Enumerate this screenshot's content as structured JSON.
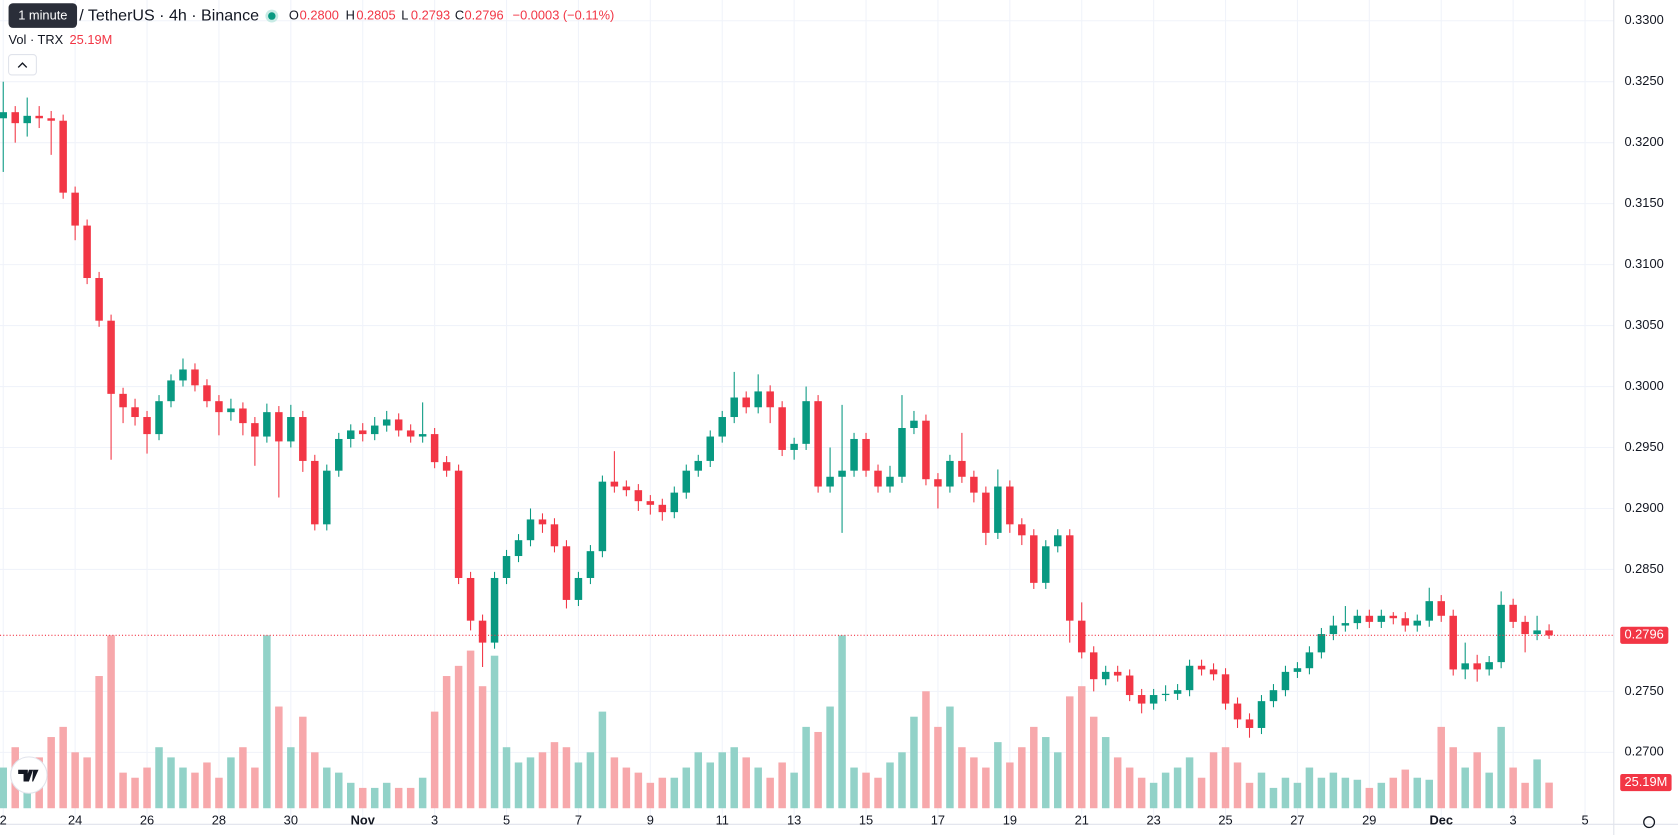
{
  "chart_data": {
    "type": "candlestick",
    "tooltip": "1 minute",
    "title": "/ TetherUS · 4h · Binance",
    "legend": {
      "o_label": "O",
      "o": "0.2800",
      "h_label": "H",
      "h": "0.2805",
      "l_label": "L",
      "l": "0.2793",
      "c_label": "C",
      "c": "0.2796",
      "change": "−0.0003 (−0.11%)"
    },
    "volume_label": "Vol · TRX",
    "volume_value": "25.19M",
    "up_color": "#089981",
    "down_color": "#f23645",
    "up_volume_color": "#92d2c8",
    "down_volume_color": "#f7a8ab",
    "grid": true,
    "ylim": [
      0.2641,
      0.3317
    ],
    "yticks": [
      {
        "value": 0.33,
        "label": "0.3300"
      },
      {
        "value": 0.325,
        "label": "0.3250"
      },
      {
        "value": 0.32,
        "label": "0.3200"
      },
      {
        "value": 0.315,
        "label": "0.3150"
      },
      {
        "value": 0.31,
        "label": "0.3100"
      },
      {
        "value": 0.305,
        "label": "0.3050"
      },
      {
        "value": 0.3,
        "label": "0.3000"
      },
      {
        "value": 0.295,
        "label": "0.2950"
      },
      {
        "value": 0.29,
        "label": "0.2900"
      },
      {
        "value": 0.285,
        "label": "0.2850"
      },
      {
        "value": 0.275,
        "label": "0.2750"
      },
      {
        "value": 0.27,
        "label": "0.2700"
      }
    ],
    "xlim": [
      -0.27,
      134.4
    ],
    "xticks": [
      {
        "value": 0,
        "label": "2"
      },
      {
        "value": 6,
        "label": "24"
      },
      {
        "value": 12,
        "label": "26"
      },
      {
        "value": 18,
        "label": "28"
      },
      {
        "value": 24,
        "label": "30"
      },
      {
        "value": 30,
        "label": "Nov"
      },
      {
        "value": 36,
        "label": "3"
      },
      {
        "value": 42,
        "label": "5"
      },
      {
        "value": 48,
        "label": "7"
      },
      {
        "value": 54,
        "label": "9"
      },
      {
        "value": 60,
        "label": "11"
      },
      {
        "value": 66,
        "label": "13"
      },
      {
        "value": 72,
        "label": "15"
      },
      {
        "value": 78,
        "label": "17"
      },
      {
        "value": 84,
        "label": "19"
      },
      {
        "value": 90,
        "label": "21"
      },
      {
        "value": 96,
        "label": "23"
      },
      {
        "value": 102,
        "label": "25"
      },
      {
        "value": 108,
        "label": "27"
      },
      {
        "value": 114,
        "label": "29"
      },
      {
        "value": 120,
        "label": "Dec"
      },
      {
        "value": 126,
        "label": "3"
      },
      {
        "value": 132,
        "label": "5"
      }
    ],
    "volume_ylim": [
      0,
      200
    ],
    "open": [
      0.322,
      0.3225,
      0.3216,
      0.3222,
      0.322,
      0.3218,
      0.3159,
      0.3132,
      0.3089,
      0.3054,
      0.2994,
      0.2983,
      0.2975,
      0.2961,
      0.2988,
      0.3005,
      0.3014,
      0.3001,
      0.2988,
      0.2979,
      0.2982,
      0.297,
      0.2959,
      0.2979,
      0.2955,
      0.2975,
      0.2939,
      0.2887,
      0.2931,
      0.2957,
      0.2964,
      0.2961,
      0.2968,
      0.2973,
      0.2964,
      0.2959,
      0.2961,
      0.2938,
      0.2931,
      0.2843,
      0.2808,
      0.279,
      0.2843,
      0.2861,
      0.2874,
      0.2891,
      0.2887,
      0.2869,
      0.2825,
      0.2843,
      0.2865,
      0.2922,
      0.2918,
      0.2915,
      0.2906,
      0.2903,
      0.2897,
      0.2913,
      0.2931,
      0.2939,
      0.2959,
      0.2975,
      0.2991,
      0.2983,
      0.2996,
      0.2983,
      0.2948,
      0.2953,
      0.2988,
      0.2918,
      0.2926,
      0.2931,
      0.2957,
      0.2931,
      0.2918,
      0.2926,
      0.2966,
      0.2972,
      0.2924,
      0.2918,
      0.2939,
      0.2926,
      0.2913,
      0.288,
      0.2918,
      0.2887,
      0.2878,
      0.2839,
      0.2869,
      0.2878,
      0.2808,
      0.2782,
      0.276,
      0.2766,
      0.2763,
      0.2747,
      0.274,
      0.2747,
      0.2748,
      0.2751,
      0.2771,
      0.2768,
      0.2764,
      0.274,
      0.2727,
      0.272,
      0.2742,
      0.2751,
      0.2766,
      0.2769,
      0.2782,
      0.2797,
      0.2804,
      0.2806,
      0.2812,
      0.2807,
      0.2812,
      0.281,
      0.2804,
      0.2808,
      0.2824,
      0.2812,
      0.2768,
      0.2773,
      0.2768,
      0.2774,
      0.2821,
      0.2807,
      0.2797,
      0.28
    ],
    "high": [
      0.325,
      0.323,
      0.3237,
      0.323,
      0.3226,
      0.3223,
      0.3164,
      0.3137,
      0.3094,
      0.3059,
      0.2999,
      0.299,
      0.298,
      0.2993,
      0.301,
      0.3023,
      0.3019,
      0.3006,
      0.2993,
      0.299,
      0.2987,
      0.2975,
      0.2986,
      0.2984,
      0.2985,
      0.298,
      0.2944,
      0.2936,
      0.2962,
      0.2969,
      0.297,
      0.2975,
      0.298,
      0.2978,
      0.2969,
      0.2987,
      0.2966,
      0.2943,
      0.2936,
      0.2848,
      0.2813,
      0.2848,
      0.2866,
      0.2879,
      0.29,
      0.2896,
      0.2892,
      0.2874,
      0.2848,
      0.287,
      0.2927,
      0.2947,
      0.2923,
      0.292,
      0.2911,
      0.2908,
      0.2918,
      0.2936,
      0.2944,
      0.2964,
      0.298,
      0.3012,
      0.2996,
      0.301,
      0.3001,
      0.2988,
      0.2958,
      0.3,
      0.2993,
      0.295,
      0.2985,
      0.2962,
      0.2962,
      0.2936,
      0.2935,
      0.2993,
      0.298,
      0.2977,
      0.2929,
      0.2944,
      0.2962,
      0.2931,
      0.2918,
      0.2932,
      0.2923,
      0.2892,
      0.2883,
      0.2874,
      0.2883,
      0.2883,
      0.2823,
      0.2787,
      0.2771,
      0.2771,
      0.2768,
      0.2752,
      0.2752,
      0.2755,
      0.2756,
      0.2776,
      0.2776,
      0.2773,
      0.2769,
      0.2745,
      0.2732,
      0.2747,
      0.2756,
      0.2771,
      0.2774,
      0.2787,
      0.2802,
      0.2812,
      0.282,
      0.2817,
      0.2817,
      0.2817,
      0.2815,
      0.2815,
      0.2813,
      0.2835,
      0.2829,
      0.2817,
      0.279,
      0.278,
      0.2779,
      0.2832,
      0.2826,
      0.2812,
      0.2812,
      0.2805
    ],
    "low": [
      0.3176,
      0.32,
      0.3205,
      0.3212,
      0.319,
      0.3154,
      0.312,
      0.3084,
      0.3049,
      0.294,
      0.297,
      0.2968,
      0.2945,
      0.2956,
      0.2983,
      0.3,
      0.2996,
      0.2983,
      0.296,
      0.2972,
      0.296,
      0.2935,
      0.2954,
      0.2909,
      0.295,
      0.293,
      0.2882,
      0.2882,
      0.2926,
      0.295,
      0.2955,
      0.2956,
      0.2963,
      0.2959,
      0.2954,
      0.2954,
      0.2933,
      0.2926,
      0.2838,
      0.28,
      0.277,
      0.2785,
      0.2838,
      0.2856,
      0.2869,
      0.288,
      0.2864,
      0.2818,
      0.282,
      0.2838,
      0.286,
      0.2913,
      0.291,
      0.2898,
      0.2895,
      0.289,
      0.2892,
      0.2908,
      0.2926,
      0.2934,
      0.2954,
      0.297,
      0.2978,
      0.2978,
      0.297,
      0.2943,
      0.294,
      0.2948,
      0.2913,
      0.2913,
      0.288,
      0.2926,
      0.2926,
      0.2913,
      0.2913,
      0.2921,
      0.2961,
      0.2919,
      0.29,
      0.2913,
      0.2921,
      0.2905,
      0.287,
      0.2875,
      0.288,
      0.287,
      0.2834,
      0.2834,
      0.2864,
      0.279,
      0.2777,
      0.275,
      0.2755,
      0.2758,
      0.2742,
      0.2732,
      0.2735,
      0.2742,
      0.2743,
      0.2746,
      0.2763,
      0.2759,
      0.2735,
      0.272,
      0.2712,
      0.2715,
      0.2737,
      0.2746,
      0.2761,
      0.2764,
      0.2777,
      0.2792,
      0.2799,
      0.2801,
      0.2802,
      0.2802,
      0.2805,
      0.2799,
      0.2799,
      0.2803,
      0.2807,
      0.2763,
      0.276,
      0.2758,
      0.2763,
      0.2769,
      0.2802,
      0.2782,
      0.2792,
      0.2793
    ],
    "close": [
      0.3225,
      0.3216,
      0.3222,
      0.322,
      0.3218,
      0.3159,
      0.3132,
      0.3089,
      0.3054,
      0.2994,
      0.2983,
      0.2975,
      0.2961,
      0.2988,
      0.3005,
      0.3014,
      0.3001,
      0.2988,
      0.2979,
      0.2982,
      0.297,
      0.2959,
      0.2979,
      0.2955,
      0.2975,
      0.2939,
      0.2887,
      0.2931,
      0.2957,
      0.2964,
      0.2961,
      0.2968,
      0.2973,
      0.2964,
      0.2959,
      0.2961,
      0.2938,
      0.2931,
      0.2843,
      0.2808,
      0.279,
      0.2843,
      0.2861,
      0.2874,
      0.2891,
      0.2887,
      0.2869,
      0.2825,
      0.2843,
      0.2865,
      0.2922,
      0.2918,
      0.2915,
      0.2906,
      0.2903,
      0.2897,
      0.2913,
      0.2931,
      0.2939,
      0.2959,
      0.2975,
      0.2991,
      0.2983,
      0.2996,
      0.2983,
      0.2948,
      0.2953,
      0.2988,
      0.2918,
      0.2926,
      0.2931,
      0.2957,
      0.2931,
      0.2918,
      0.2926,
      0.2966,
      0.2972,
      0.2924,
      0.2918,
      0.2939,
      0.2926,
      0.2913,
      0.288,
      0.2918,
      0.2887,
      0.2878,
      0.2839,
      0.2869,
      0.2878,
      0.2808,
      0.2782,
      0.276,
      0.2766,
      0.2763,
      0.2747,
      0.274,
      0.2747,
      0.2748,
      0.2751,
      0.2771,
      0.2768,
      0.2764,
      0.274,
      0.2727,
      0.272,
      0.2742,
      0.2751,
      0.2766,
      0.2769,
      0.2782,
      0.2797,
      0.2804,
      0.2806,
      0.2812,
      0.2807,
      0.2812,
      0.281,
      0.2804,
      0.2808,
      0.2824,
      0.2812,
      0.2768,
      0.2773,
      0.2768,
      0.2774,
      0.2821,
      0.2807,
      0.2797,
      0.28,
      0.2796
    ],
    "volume": [
      40,
      60,
      30,
      50,
      70,
      80,
      55,
      50,
      130,
      170,
      35,
      30,
      40,
      60,
      50,
      40,
      35,
      45,
      30,
      50,
      60,
      40,
      170,
      100,
      60,
      90,
      55,
      40,
      35,
      25,
      20,
      20,
      25,
      20,
      20,
      30,
      95,
      130,
      140,
      155,
      120,
      150,
      60,
      45,
      50,
      55,
      65,
      60,
      45,
      55,
      95,
      50,
      40,
      35,
      25,
      30,
      30,
      40,
      55,
      45,
      55,
      60,
      50,
      40,
      30,
      45,
      35,
      80,
      75,
      100,
      170,
      40,
      35,
      30,
      45,
      55,
      90,
      115,
      80,
      100,
      60,
      50,
      40,
      65,
      45,
      60,
      80,
      70,
      55,
      110,
      120,
      90,
      70,
      50,
      40,
      30,
      25,
      35,
      40,
      50,
      30,
      55,
      60,
      45,
      25,
      35,
      20,
      30,
      25,
      40,
      30,
      35,
      30,
      28,
      20,
      25,
      30,
      38,
      30,
      28,
      80,
      60,
      40,
      55,
      35,
      80,
      40,
      25,
      48,
      25.19
    ]
  }
}
